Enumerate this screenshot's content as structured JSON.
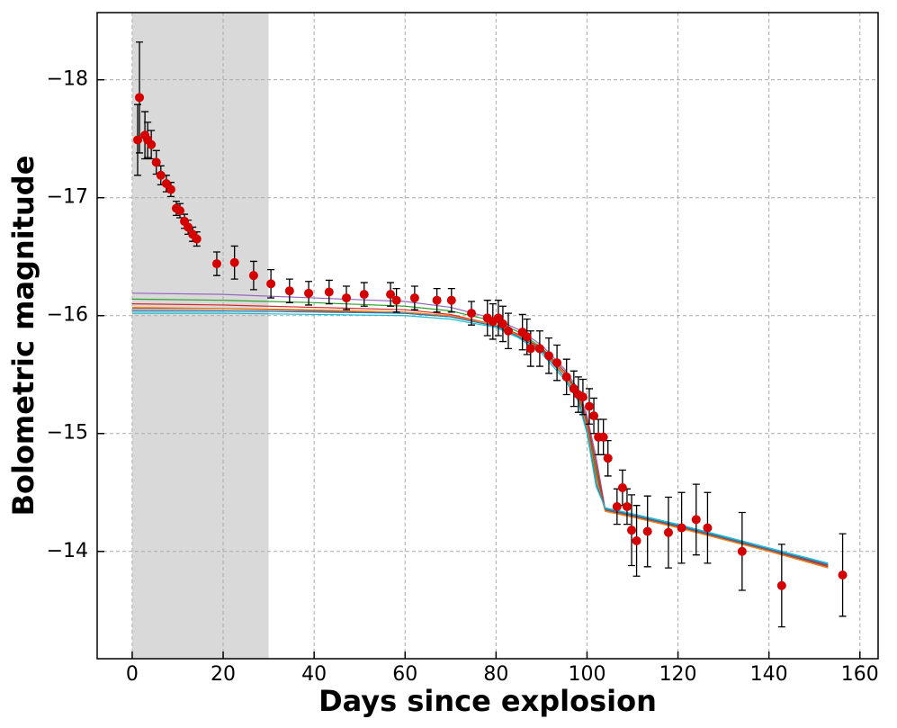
{
  "chart_data": {
    "type": "scatter",
    "xlabel": "Days since explosion",
    "ylabel": "Bolometric magnitude",
    "xlim": [
      -7.7,
      164
    ],
    "ylim": [
      -13.09,
      -18.57
    ],
    "xticks": [
      0,
      20,
      40,
      60,
      80,
      100,
      120,
      140,
      160
    ],
    "yticks": [
      {
        "value": -18,
        "label": "−18"
      },
      {
        "value": -17,
        "label": "−17"
      },
      {
        "value": -16,
        "label": "−16"
      },
      {
        "value": -15,
        "label": "−15"
      },
      {
        "value": -14,
        "label": "−14"
      }
    ],
    "grid": true,
    "shaded_span": [
      0,
      30
    ],
    "shade_color": "#d9d9d9",
    "models": {
      "x": [
        0,
        20,
        40,
        60,
        70,
        80,
        85,
        90,
        95,
        98,
        100,
        102,
        104,
        110,
        120,
        130,
        140,
        153
      ],
      "lines": [
        {
          "color": "#9467bd",
          "values": [
            -16.19,
            -16.18,
            -16.15,
            -16.12,
            -16.07,
            -15.97,
            -15.88,
            -15.75,
            -15.55,
            -15.38,
            -15.15,
            -14.8,
            -14.36,
            -14.31,
            -14.22,
            -14.12,
            -14.02,
            -13.88
          ]
        },
        {
          "color": "#2ca02c",
          "values": [
            -16.14,
            -16.13,
            -16.11,
            -16.08,
            -16.04,
            -15.95,
            -15.86,
            -15.73,
            -15.53,
            -15.36,
            -15.1,
            -14.7,
            -14.35,
            -14.3,
            -14.21,
            -14.11,
            -14.01,
            -13.87
          ]
        },
        {
          "color": "#d62728",
          "values": [
            -16.1,
            -16.09,
            -16.07,
            -16.05,
            -16.01,
            -15.92,
            -15.84,
            -15.72,
            -15.53,
            -15.35,
            -15.12,
            -14.75,
            -14.35,
            -14.3,
            -14.21,
            -14.11,
            -14.01,
            -13.88
          ]
        },
        {
          "color": "#8c564b",
          "values": [
            -16.06,
            -16.06,
            -16.04,
            -16.02,
            -15.99,
            -15.91,
            -15.83,
            -15.71,
            -15.51,
            -15.34,
            -15.08,
            -14.66,
            -14.35,
            -14.3,
            -14.21,
            -14.11,
            -14.01,
            -13.87
          ]
        },
        {
          "color": "#ff7f0e",
          "values": [
            -16.07,
            -16.06,
            -16.05,
            -16.03,
            -16.0,
            -15.92,
            -15.83,
            -15.7,
            -15.5,
            -15.32,
            -15.05,
            -14.62,
            -14.34,
            -14.29,
            -14.2,
            -14.1,
            -14.0,
            -13.86
          ]
        },
        {
          "color": "#1f77b4",
          "values": [
            -16.04,
            -16.04,
            -16.03,
            -16.02,
            -15.99,
            -15.91,
            -15.82,
            -15.7,
            -15.48,
            -15.3,
            -15.02,
            -14.58,
            -14.36,
            -14.31,
            -14.22,
            -14.12,
            -14.02,
            -13.89
          ]
        },
        {
          "color": "#17becf",
          "values": [
            -16.02,
            -16.02,
            -16.01,
            -16.0,
            -15.97,
            -15.9,
            -15.81,
            -15.68,
            -15.46,
            -15.28,
            -15.0,
            -14.55,
            -14.37,
            -14.32,
            -14.23,
            -14.13,
            -14.03,
            -13.9
          ]
        }
      ]
    },
    "series": [
      {
        "color": "#d40000",
        "x": [
          1.2,
          1.6,
          2.8,
          3.4,
          4.2,
          5.3,
          6.3,
          7.5,
          8.5,
          9.7,
          10.5,
          11.5,
          12.3,
          13.3,
          14.2,
          18.6,
          22.5,
          26.7,
          30.5,
          34.6,
          38.8,
          43.3,
          47.1,
          51.0,
          56.8,
          58.1,
          62.1,
          67.0,
          70.2,
          74.6,
          78.1,
          79.3,
          80.5,
          81.5,
          82.7,
          85.8,
          86.8,
          87.6,
          89.6,
          91.6,
          93.4,
          95.5,
          97.1,
          98.1,
          99.1,
          100.5,
          101.5,
          102.5,
          103.6,
          104.6,
          106.6,
          107.8,
          108.8,
          109.8,
          110.9,
          113.3,
          117.9,
          120.8,
          124.0,
          126.5,
          134.1,
          142.8,
          156.2
        ],
        "values": [
          -17.49,
          -17.85,
          -17.53,
          -17.49,
          -17.45,
          -17.3,
          -17.19,
          -17.12,
          -17.07,
          -16.91,
          -16.89,
          -16.8,
          -16.75,
          -16.69,
          -16.65,
          -16.44,
          -16.45,
          -16.34,
          -16.27,
          -16.21,
          -16.19,
          -16.2,
          -16.15,
          -16.18,
          -16.18,
          -16.13,
          -16.15,
          -16.13,
          -16.13,
          -16.02,
          -15.98,
          -15.95,
          -15.98,
          -15.93,
          -15.87,
          -15.86,
          -15.82,
          -15.72,
          -15.72,
          -15.66,
          -15.6,
          -15.48,
          -15.38,
          -15.33,
          -15.31,
          -15.23,
          -15.15,
          -14.97,
          -14.97,
          -14.79,
          -14.38,
          -14.54,
          -14.38,
          -14.18,
          -14.09,
          -14.17,
          -14.16,
          -14.2,
          -14.27,
          -14.2,
          -14.0,
          -13.71,
          -13.8
        ],
        "errors": [
          0.3,
          0.47,
          0.2,
          0.15,
          0.12,
          0.1,
          0.08,
          0.07,
          0.06,
          0.06,
          0.06,
          0.06,
          0.06,
          0.06,
          0.06,
          0.1,
          0.14,
          0.12,
          0.12,
          0.1,
          0.1,
          0.1,
          0.1,
          0.1,
          0.1,
          0.1,
          0.1,
          0.1,
          0.1,
          0.1,
          0.15,
          0.15,
          0.15,
          0.15,
          0.15,
          0.15,
          0.15,
          0.15,
          0.15,
          0.15,
          0.15,
          0.15,
          0.15,
          0.15,
          0.15,
          0.15,
          0.15,
          0.15,
          0.15,
          0.15,
          0.15,
          0.15,
          0.15,
          0.3,
          0.3,
          0.3,
          0.3,
          0.3,
          0.3,
          0.3,
          0.33,
          0.35,
          0.35
        ]
      }
    ]
  }
}
